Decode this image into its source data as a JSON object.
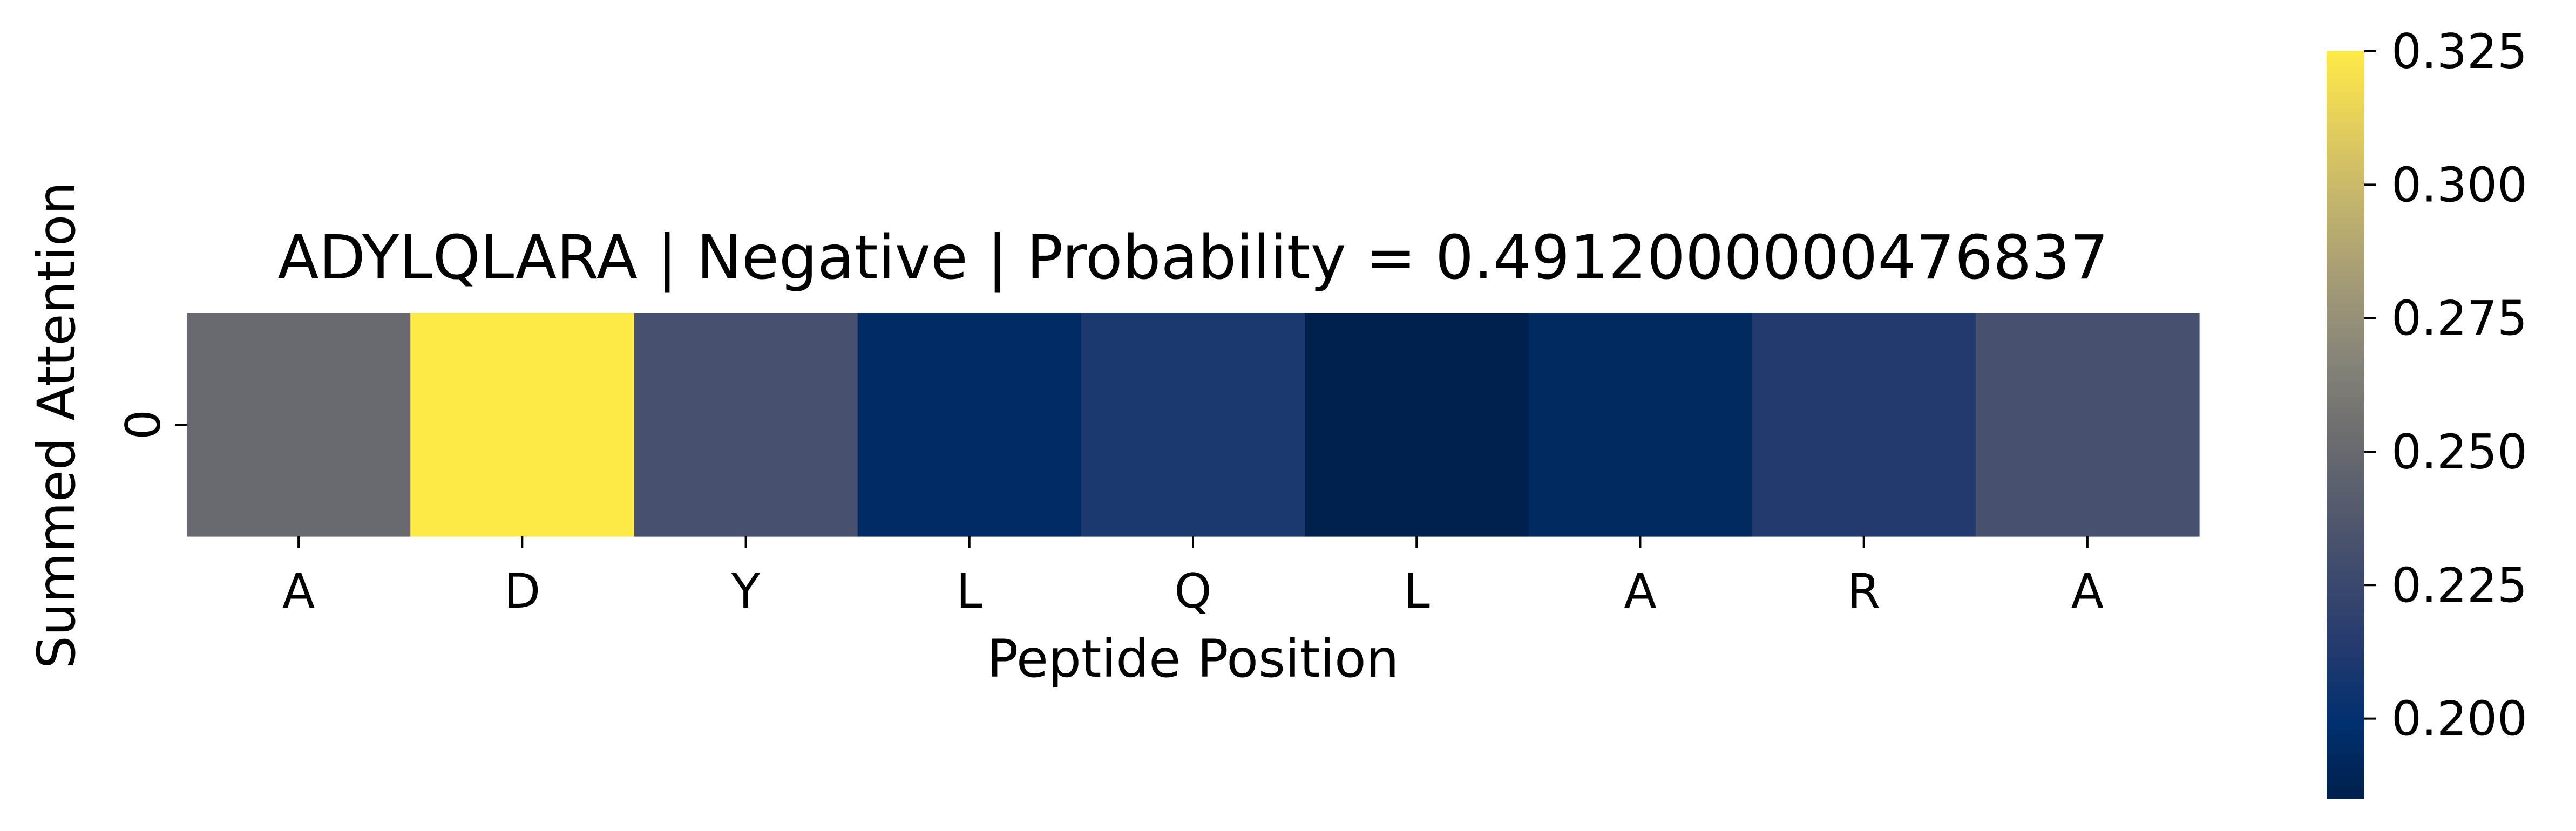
{
  "chart_data": {
    "type": "heatmap",
    "title": "ADYLQLARA | Negative | Probability = 0.4912000000476837",
    "xlabel": "Peptide Position",
    "ylabel": "Summed Attention",
    "x_categories": [
      "A",
      "D",
      "Y",
      "L",
      "Q",
      "L",
      "A",
      "R",
      "A"
    ],
    "y_categories": [
      "0"
    ],
    "values": [
      [
        0.25,
        0.325,
        0.232,
        0.195,
        0.21,
        0.185,
        0.193,
        0.213,
        0.232
      ]
    ],
    "colormap": "cividis",
    "colorbar": {
      "min": 0.185,
      "max": 0.325,
      "ticks": [
        0.2,
        0.225,
        0.25,
        0.275,
        0.3,
        0.325
      ],
      "tick_labels": [
        "0.200",
        "0.225",
        "0.250",
        "0.275",
        "0.300",
        "0.325"
      ]
    }
  }
}
